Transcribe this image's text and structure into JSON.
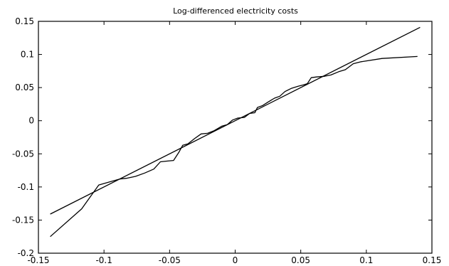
{
  "chart_data": {
    "type": "line",
    "title": "Log-differenced electricity costs",
    "xlabel": "",
    "ylabel": "",
    "xlim": [
      -0.15,
      0.15
    ],
    "ylim": [
      -0.2,
      0.15
    ],
    "xticks": [
      -0.15,
      -0.1,
      -0.05,
      0,
      0.05,
      0.1,
      0.15
    ],
    "xtick_labels": [
      "-0.15",
      "-0.1",
      "-0.05",
      "0",
      "0.05",
      "0.1",
      "0.15"
    ],
    "yticks": [
      -0.2,
      -0.15,
      -0.1,
      -0.05,
      0,
      0.05,
      0.1,
      0.15
    ],
    "ytick_labels": [
      "-0.2",
      "-0.15",
      "-0.1",
      "-0.05",
      "0",
      "0.05",
      "0.1",
      "0.15"
    ],
    "grid": false,
    "legend": "none",
    "colors": {
      "line": "#000000",
      "frame": "#000000",
      "background": "#ffffff"
    },
    "series": [
      {
        "x": [
          -0.141,
          0.141
        ],
        "y": [
          -0.141,
          0.141
        ]
      },
      {
        "x": [
          -0.141,
          -0.117,
          -0.104,
          -0.095,
          -0.088,
          -0.083,
          -0.076,
          -0.069,
          -0.062,
          -0.057,
          -0.052,
          -0.047,
          -0.043,
          -0.04,
          -0.036,
          -0.031,
          -0.026,
          -0.021,
          -0.016,
          -0.01,
          -0.006,
          -0.002,
          0.002,
          0.007,
          0.011,
          0.015,
          0.017,
          0.021,
          0.025,
          0.03,
          0.034,
          0.038,
          0.043,
          0.048,
          0.052,
          0.055,
          0.058,
          0.062,
          0.068,
          0.073,
          0.079,
          0.084,
          0.09,
          0.096,
          0.112,
          0.139
        ],
        "y": [
          -0.175,
          -0.133,
          -0.097,
          -0.092,
          -0.088,
          -0.087,
          -0.084,
          -0.079,
          -0.073,
          -0.062,
          -0.061,
          -0.06,
          -0.048,
          -0.037,
          -0.035,
          -0.027,
          -0.02,
          -0.019,
          -0.015,
          -0.008,
          -0.006,
          0.001,
          0.004,
          0.005,
          0.011,
          0.012,
          0.02,
          0.023,
          0.028,
          0.034,
          0.037,
          0.044,
          0.049,
          0.052,
          0.054,
          0.056,
          0.065,
          0.066,
          0.067,
          0.069,
          0.074,
          0.077,
          0.086,
          0.089,
          0.094,
          0.097
        ]
      }
    ]
  }
}
